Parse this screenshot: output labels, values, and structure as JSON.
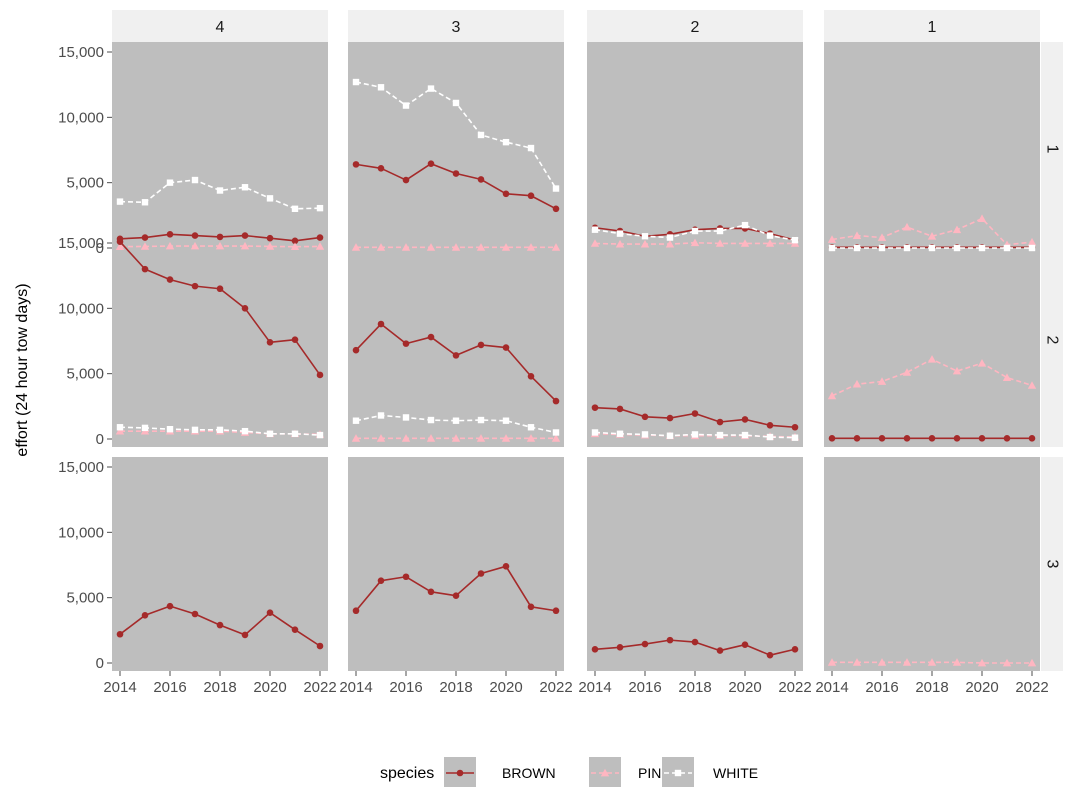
{
  "colors": {
    "panel_background": "#bebebe",
    "strip_background": "#f0f0f0",
    "tick_color": "#4d4d4d",
    "BROWN": "#a52a2a",
    "PINK": "#ffb6c1",
    "WHITE": "#ffffff"
  },
  "chart_data": {
    "type": "line",
    "facet_layout": "grid",
    "column_strips": [
      "4",
      "3",
      "2",
      "1"
    ],
    "row_strips": [
      "1",
      "2",
      "3"
    ],
    "x": [
      2014,
      2015,
      2016,
      2017,
      2018,
      2019,
      2020,
      2021,
      2022
    ],
    "x_ticks": [
      2014,
      2016,
      2018,
      2020,
      2022
    ],
    "xlim": [
      2014,
      2022
    ],
    "ylim": [
      0,
      15000
    ],
    "y_ticks": [
      0,
      5000,
      10000,
      15000
    ],
    "y_tick_labels": [
      "0",
      "5,000",
      "10,000",
      "15,000"
    ],
    "xlabel": "",
    "ylabel": "effort (24 hour tow days)",
    "grid": false,
    "legend": {
      "title": "species",
      "placement": "bottom",
      "entries": [
        {
          "name": "BROWN",
          "line": "solid",
          "marker": "circle",
          "icon": "circle-marker-icon"
        },
        {
          "name": "PINK",
          "line": "dashed",
          "marker": "triangle",
          "icon": "triangle-marker-icon"
        },
        {
          "name": "WHITE",
          "line": "dashed",
          "marker": "square",
          "icon": "square-marker-icon"
        }
      ]
    },
    "panels": [
      {
        "row": "1",
        "col": "4",
        "series": [
          {
            "name": "BROWN",
            "values": [
              700,
              800,
              1050,
              950,
              850,
              950,
              750,
              550,
              800
            ]
          },
          {
            "name": "PINK",
            "values": [
              100,
              120,
              150,
              150,
              150,
              150,
              120,
              100,
              120
            ]
          },
          {
            "name": "WHITE",
            "values": [
              3550,
              3500,
              5000,
              5200,
              4400,
              4650,
              3800,
              3000,
              3050
            ]
          }
        ]
      },
      {
        "row": "1",
        "col": "3",
        "series": [
          {
            "name": "BROWN",
            "values": [
              6400,
              6100,
              5200,
              6450,
              5700,
              5250,
              4150,
              4000,
              3000
            ]
          },
          {
            "name": "PINK",
            "values": [
              50,
              50,
              50,
              50,
              50,
              50,
              50,
              50,
              50
            ]
          },
          {
            "name": "WHITE",
            "values": [
              12700,
              12300,
              10900,
              12200,
              11100,
              8650,
              8100,
              7650,
              4550
            ]
          }
        ]
      },
      {
        "row": "1",
        "col": "2",
        "series": [
          {
            "name": "BROWN",
            "values": [
              1550,
              1300,
              900,
              1050,
              1400,
              1500,
              1500,
              1100,
              600
            ]
          },
          {
            "name": "PINK",
            "values": [
              350,
              300,
              300,
              300,
              400,
              350,
              350,
              350,
              350
            ]
          },
          {
            "name": "WHITE",
            "values": [
              1400,
              1100,
              900,
              800,
              1300,
              1300,
              1750,
              950,
              600
            ]
          }
        ]
      },
      {
        "row": "1",
        "col": "1",
        "series": [
          {
            "name": "BROWN",
            "values": [
              50,
              50,
              50,
              50,
              50,
              50,
              50,
              50,
              50
            ]
          },
          {
            "name": "PINK",
            "values": [
              650,
              950,
              800,
              1600,
              900,
              1400,
              2250,
              250,
              450
            ]
          },
          {
            "name": "WHITE",
            "values": [
              0,
              0,
              0,
              0,
              0,
              0,
              0,
              0,
              0
            ]
          }
        ]
      },
      {
        "row": "2",
        "col": "4",
        "series": [
          {
            "name": "BROWN",
            "values": [
              15100,
              13000,
              12200,
              11700,
              11500,
              10000,
              7400,
              7600,
              4900
            ]
          },
          {
            "name": "PINK",
            "values": [
              600,
              600,
              600,
              600,
              600,
              500,
              400,
              400,
              350
            ]
          },
          {
            "name": "WHITE",
            "values": [
              900,
              850,
              750,
              700,
              700,
              600,
              400,
              400,
              300
            ]
          }
        ]
      },
      {
        "row": "2",
        "col": "3",
        "series": [
          {
            "name": "BROWN",
            "values": [
              6800,
              8800,
              7300,
              7800,
              6400,
              7200,
              7000,
              4800,
              2900
            ]
          },
          {
            "name": "PINK",
            "values": [
              50,
              50,
              50,
              50,
              50,
              50,
              50,
              50,
              50
            ]
          },
          {
            "name": "WHITE",
            "values": [
              1400,
              1800,
              1650,
              1450,
              1400,
              1450,
              1400,
              900,
              500
            ]
          }
        ]
      },
      {
        "row": "2",
        "col": "2",
        "series": [
          {
            "name": "BROWN",
            "values": [
              2400,
              2300,
              1700,
              1600,
              1950,
              1300,
              1500,
              1050,
              900
            ]
          },
          {
            "name": "PINK",
            "values": [
              400,
              350,
              300,
              250,
              250,
              250,
              250,
              200,
              150
            ]
          },
          {
            "name": "WHITE",
            "values": [
              500,
              400,
              350,
              250,
              350,
              300,
              300,
              150,
              100
            ]
          }
        ]
      },
      {
        "row": "2",
        "col": "1",
        "series": [
          {
            "name": "BROWN",
            "values": [
              50,
              50,
              50,
              50,
              50,
              50,
              50,
              50,
              50
            ]
          },
          {
            "name": "PINK",
            "values": [
              3300,
              4200,
              4400,
              5100,
              6100,
              5200,
              5800,
              4700,
              4100
            ]
          }
        ]
      },
      {
        "row": "3",
        "col": "4",
        "series": [
          {
            "name": "BROWN",
            "values": [
              2200,
              3650,
              4350,
              3750,
              2900,
              2150,
              3850,
              2550,
              1300
            ]
          }
        ]
      },
      {
        "row": "3",
        "col": "3",
        "series": [
          {
            "name": "BROWN",
            "values": [
              4000,
              6300,
              6600,
              5450,
              5150,
              6850,
              7400,
              4300,
              4000
            ]
          }
        ]
      },
      {
        "row": "3",
        "col": "2",
        "series": [
          {
            "name": "BROWN",
            "values": [
              1050,
              1200,
              1450,
              1750,
              1600,
              950,
              1400,
              600,
              1050
            ]
          }
        ]
      },
      {
        "row": "3",
        "col": "1",
        "series": [
          {
            "name": "PINK",
            "values": [
              50,
              50,
              50,
              50,
              50,
              50,
              0,
              0,
              0
            ]
          }
        ]
      }
    ]
  }
}
